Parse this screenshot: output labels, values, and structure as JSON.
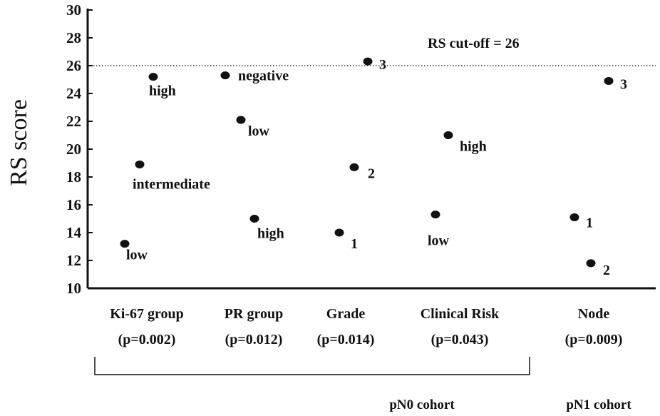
{
  "chart_data": {
    "type": "scatter",
    "ylabel": "RS score",
    "ylim": [
      10,
      30
    ],
    "yticks": [
      10,
      12,
      14,
      16,
      18,
      20,
      22,
      24,
      26,
      28,
      30
    ],
    "cutoff": {
      "value": 26,
      "label": "RS cut-off = 26"
    },
    "groups": [
      {
        "name": "Ki-67 group",
        "pvalue": "(p=0.002)"
      },
      {
        "name": "PR group",
        "pvalue": "(p=0.012)"
      },
      {
        "name": "Grade",
        "pvalue": "(p=0.014)"
      },
      {
        "name": "Clinical Risk",
        "pvalue": "(p=0.043)"
      },
      {
        "name": "Node",
        "pvalue": "(p=0.009)"
      }
    ],
    "points": [
      {
        "group": "Ki-67 group",
        "label": "low",
        "y": 13.2
      },
      {
        "group": "Ki-67 group",
        "label": "intermediate",
        "y": 18.9
      },
      {
        "group": "Ki-67 group",
        "label": "high",
        "y": 25.2
      },
      {
        "group": "PR group",
        "label": "negative",
        "y": 25.3
      },
      {
        "group": "PR group",
        "label": "low",
        "y": 22.1
      },
      {
        "group": "PR group",
        "label": "high",
        "y": 15.0
      },
      {
        "group": "Grade",
        "label": "1",
        "y": 14.0
      },
      {
        "group": "Grade",
        "label": "2",
        "y": 18.7
      },
      {
        "group": "Grade",
        "label": "3",
        "y": 26.3
      },
      {
        "group": "Clinical Risk",
        "label": "low",
        "y": 15.3
      },
      {
        "group": "Clinical Risk",
        "label": "high",
        "y": 21.0
      },
      {
        "group": "Node",
        "label": "1",
        "y": 15.1
      },
      {
        "group": "Node",
        "label": "2",
        "y": 11.8
      },
      {
        "group": "Node",
        "label": "3",
        "y": 24.9
      }
    ],
    "cohorts": [
      {
        "label": "pN0 cohort",
        "groups": [
          "Ki-67 group",
          "PR group",
          "Grade",
          "Clinical Risk"
        ]
      },
      {
        "label": "pN1 cohort",
        "groups": [
          "Node"
        ]
      }
    ]
  }
}
